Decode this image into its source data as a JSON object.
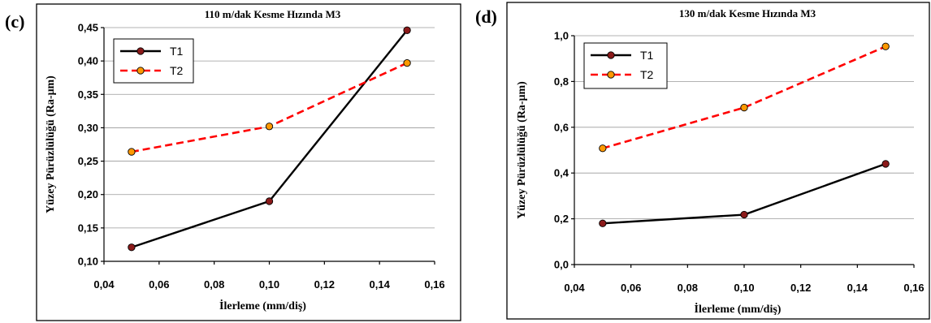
{
  "chart_data": [
    {
      "panel": "(c)",
      "type": "line",
      "title": "110 m/dak Kesme Hızında M3",
      "xlabel": "İlerleme (mm/diş)",
      "ylabel": "Yüzey Pürüzlülüğü (Ra-μm)",
      "xlim": [
        0.04,
        0.16
      ],
      "ylim": [
        0.1,
        0.45
      ],
      "xticks": [
        "0,04",
        "0,06",
        "0,08",
        "0,10",
        "0,12",
        "0,14",
        "0,16"
      ],
      "yticks": [
        "0,10",
        "0,15",
        "0,20",
        "0,25",
        "0,30",
        "0,35",
        "0,40",
        "0,45"
      ],
      "x": [
        0.05,
        0.1,
        0.15
      ],
      "series": [
        {
          "name": "T1",
          "values": [
            0.121,
            0.19,
            0.446
          ],
          "color": "#000000",
          "marker": "#8b1a1a",
          "dashed": false
        },
        {
          "name": "T2",
          "values": [
            0.264,
            0.302,
            0.397
          ],
          "color": "#ff0000",
          "marker": "#ff9900",
          "dashed": true
        }
      ],
      "legend": "top-left",
      "grid": true
    },
    {
      "panel": "(d)",
      "type": "line",
      "title": "130 m/dak Kesme Hızında M3",
      "xlabel": "İlerleme (mm/diş)",
      "ylabel": "Yüzey Pürüzlülüğü (Ra-μm)",
      "xlim": [
        0.04,
        0.16
      ],
      "ylim": [
        0.0,
        1.0
      ],
      "xticks": [
        "0,04",
        "0,06",
        "0,08",
        "0,10",
        "0,12",
        "0,14",
        "0,16"
      ],
      "yticks": [
        "0,0",
        "0,2",
        "0,4",
        "0,6",
        "0,8",
        "1,0"
      ],
      "x": [
        0.05,
        0.1,
        0.15
      ],
      "series": [
        {
          "name": "T1",
          "values": [
            0.18,
            0.218,
            0.44
          ],
          "color": "#000000",
          "marker": "#8b1a1a",
          "dashed": false
        },
        {
          "name": "T2",
          "values": [
            0.508,
            0.686,
            0.953
          ],
          "color": "#ff0000",
          "marker": "#ff9900",
          "dashed": true
        }
      ],
      "legend": "top-left",
      "grid": true
    }
  ]
}
